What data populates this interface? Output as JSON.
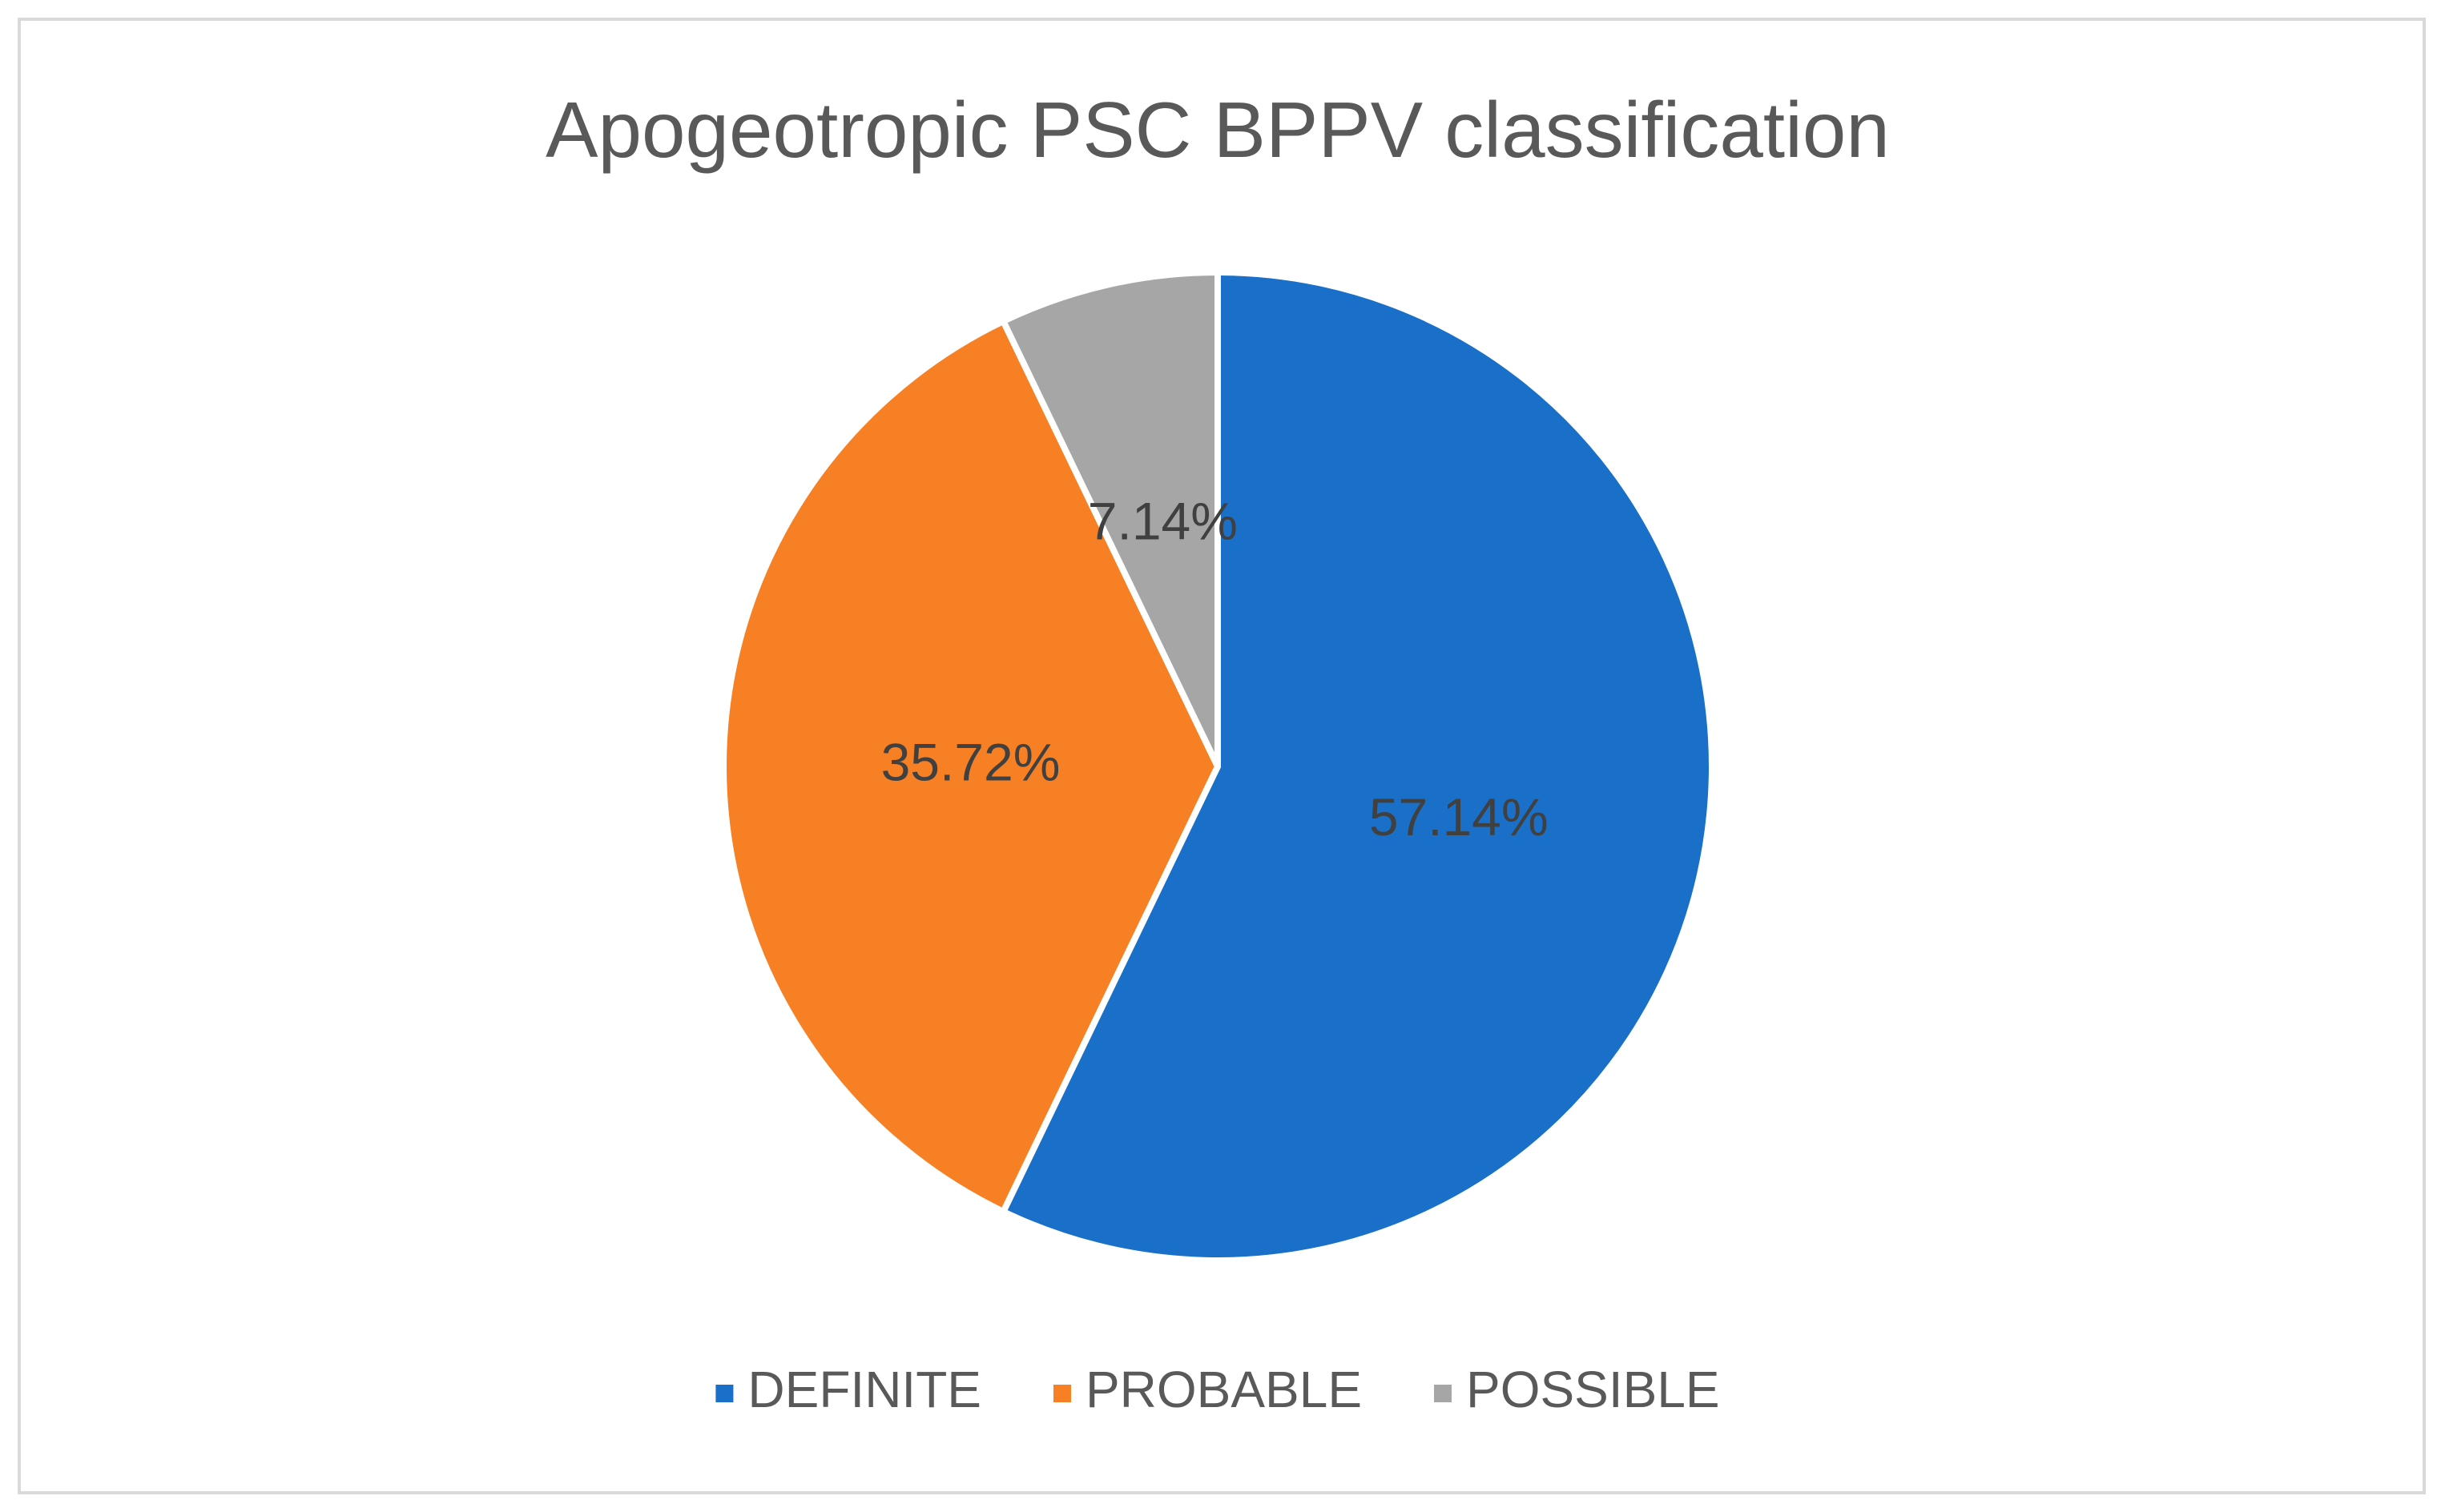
{
  "chart_data": {
    "type": "pie",
    "title": "Apogeotropic PSC BPPV classification",
    "categories": [
      "DEFINITE",
      "PROBABLE",
      "POSSIBLE"
    ],
    "values": [
      57.14,
      35.72,
      7.14
    ],
    "value_labels": [
      "57.14%",
      "35.72%",
      "7.14%"
    ],
    "colors": [
      "#1a70c8",
      "#f78025",
      "#a6a6a6"
    ],
    "legend": "bottom"
  }
}
